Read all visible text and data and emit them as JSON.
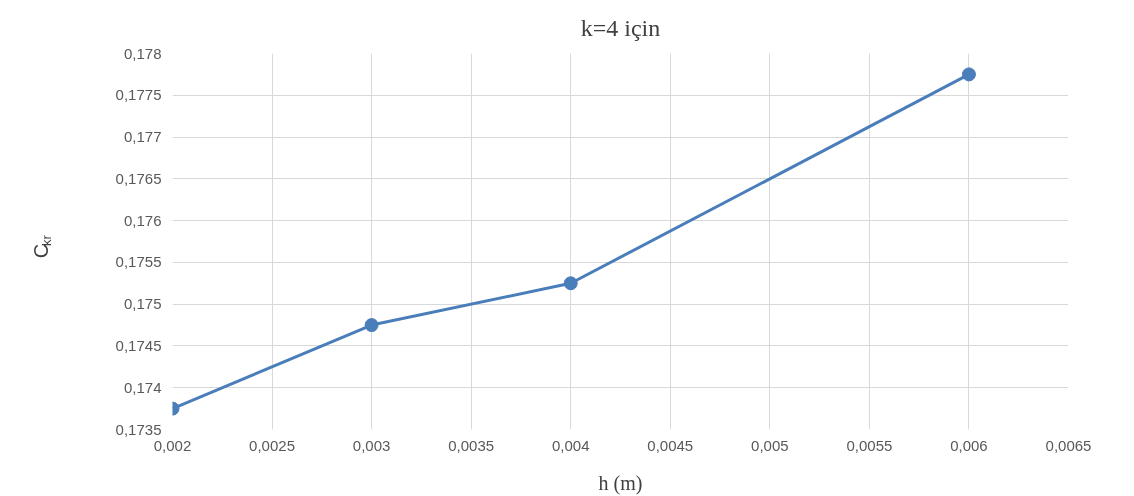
{
  "chart_data": {
    "type": "line",
    "title": "k=4 için",
    "xlabel": "h (m)",
    "ylabel": "C$_{kr}$",
    "x": [
      0.002,
      0.003,
      0.004,
      0.006
    ],
    "series": [
      {
        "color": "#4a7ebb",
        "values": [
          0.17375,
          0.17475,
          0.17525,
          0.17775
        ]
      }
    ],
    "xlim": [
      0.002,
      0.0065
    ],
    "ylim": [
      0.1735,
      0.178
    ],
    "xticks": [
      {
        "value": 0.002,
        "label": "0,002"
      },
      {
        "value": 0.0025,
        "label": "0,0025"
      },
      {
        "value": 0.003,
        "label": "0,003"
      },
      {
        "value": 0.0035,
        "label": "0,0035"
      },
      {
        "value": 0.004,
        "label": "0,004"
      },
      {
        "value": 0.0045,
        "label": "0,0045"
      },
      {
        "value": 0.005,
        "label": "0,005"
      },
      {
        "value": 0.0055,
        "label": "0,0055"
      },
      {
        "value": 0.006,
        "label": "0,006"
      },
      {
        "value": 0.0065,
        "label": "0,0065"
      }
    ],
    "yticks": [
      {
        "value": 0.1735,
        "label": "0,1735"
      },
      {
        "value": 0.174,
        "label": "0,174"
      },
      {
        "value": 0.1745,
        "label": "0,1745"
      },
      {
        "value": 0.175,
        "label": "0,175"
      },
      {
        "value": 0.1755,
        "label": "0,1755"
      },
      {
        "value": 0.176,
        "label": "0,176"
      },
      {
        "value": 0.1765,
        "label": "0,1765"
      },
      {
        "value": 0.177,
        "label": "0,177"
      },
      {
        "value": 0.1775,
        "label": "0,1775"
      },
      {
        "value": 0.178,
        "label": "0,178"
      }
    ],
    "grid": true,
    "marker": "circle",
    "line_style": "solid"
  }
}
